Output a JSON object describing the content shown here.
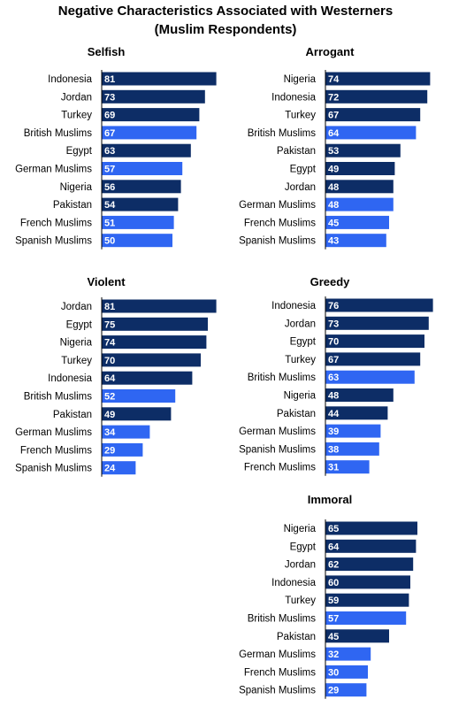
{
  "title_line1": "Negative Characteristics Associated with Westerners",
  "title_line2": "(Muslim Respondents)",
  "colors": {
    "country": "#0d2d66",
    "diaspora": "#2f66f2",
    "axis": "#000000"
  },
  "chart_data": [
    {
      "type": "bar",
      "orientation": "horizontal",
      "title": "Selfish",
      "categories": [
        "Indonesia",
        "Jordan",
        "Turkey",
        "British Muslims",
        "Egypt",
        "German Muslims",
        "Nigeria",
        "Pakistan",
        "French Muslims",
        "Spanish Muslims"
      ],
      "values": [
        81,
        73,
        69,
        67,
        63,
        57,
        56,
        54,
        51,
        50
      ]
    },
    {
      "type": "bar",
      "orientation": "horizontal",
      "title": "Arrogant",
      "categories": [
        "Nigeria",
        "Indonesia",
        "Turkey",
        "British Muslims",
        "Pakistan",
        "Egypt",
        "Jordan",
        "German Muslims",
        "French Muslims",
        "Spanish Muslims"
      ],
      "values": [
        74,
        72,
        67,
        64,
        53,
        49,
        48,
        48,
        45,
        43
      ]
    },
    {
      "type": "bar",
      "orientation": "horizontal",
      "title": "Violent",
      "categories": [
        "Jordan",
        "Egypt",
        "Nigeria",
        "Turkey",
        "Indonesia",
        "British Muslims",
        "Pakistan",
        "German Muslims",
        "French Muslims",
        "Spanish Muslims"
      ],
      "values": [
        81,
        75,
        74,
        70,
        64,
        52,
        49,
        34,
        29,
        24
      ]
    },
    {
      "type": "bar",
      "orientation": "horizontal",
      "title": "Greedy",
      "categories": [
        "Indonesia",
        "Jordan",
        "Egypt",
        "Turkey",
        "British Muslims",
        "Nigeria",
        "Pakistan",
        "German Muslims",
        "Spanish Muslims",
        "French Muslims"
      ],
      "values": [
        76,
        73,
        70,
        67,
        63,
        48,
        44,
        39,
        38,
        31
      ]
    },
    {
      "type": "bar",
      "orientation": "horizontal",
      "title": "Immoral",
      "categories": [
        "Nigeria",
        "Egypt",
        "Jordan",
        "Indonesia",
        "Turkey",
        "British Muslims",
        "Pakistan",
        "German Muslims",
        "French Muslims",
        "Spanish Muslims"
      ],
      "values": [
        65,
        64,
        62,
        60,
        59,
        57,
        45,
        32,
        30,
        29
      ]
    }
  ]
}
